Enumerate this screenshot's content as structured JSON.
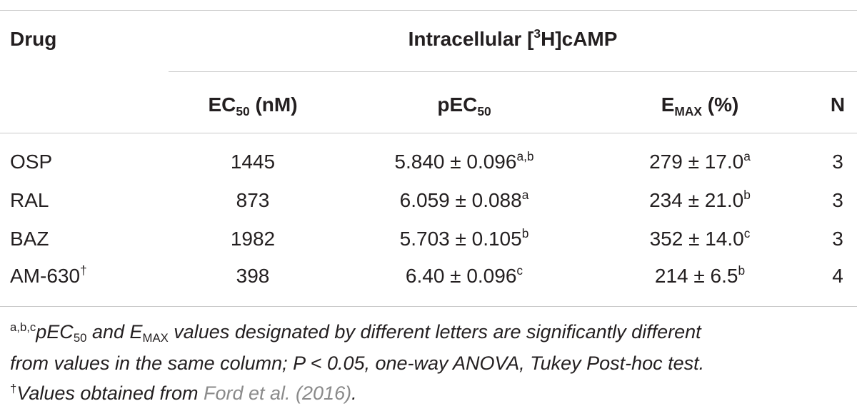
{
  "header": {
    "drug": "Drug",
    "group": {
      "pre": "Intracellular [",
      "sup": "3",
      "post": "H]cAMP"
    },
    "ec50": {
      "pre": "EC",
      "sub": "50",
      "post": " (nM)"
    },
    "pec50": {
      "pre": "pEC",
      "sub": "50",
      "post": ""
    },
    "emax": {
      "pre": "E",
      "sub": "MAX",
      "post": " (%)"
    },
    "n": "N"
  },
  "rows": [
    {
      "drug": "OSP",
      "drug_sup": "",
      "ec50": "1445",
      "pec50": "5.840 ± 0.096",
      "pec50_sup": "a,b",
      "emax": "279 ± 17.0",
      "emax_sup": "a",
      "n": "3"
    },
    {
      "drug": "RAL",
      "drug_sup": "",
      "ec50": "873",
      "pec50": "6.059 ± 0.088",
      "pec50_sup": "a",
      "emax": "234 ± 21.0",
      "emax_sup": "b",
      "n": "3"
    },
    {
      "drug": "BAZ",
      "drug_sup": "",
      "ec50": "1982",
      "pec50": "5.703 ± 0.105",
      "pec50_sup": "b",
      "emax": "352 ± 14.0",
      "emax_sup": "c",
      "n": "3"
    },
    {
      "drug": "AM-630",
      "drug_sup": "†",
      "ec50": "398",
      "pec50": "6.40 ± 0.096",
      "pec50_sup": "c",
      "emax": "214 ± 6.5",
      "emax_sup": "b",
      "n": "4"
    }
  ],
  "footnotes": {
    "line1": {
      "sup": "a,b,c",
      "t1": "pEC",
      "sub1": "50",
      "t2": " and E",
      "sub2": "MAX",
      "t3": " values designated by different letters are significantly different"
    },
    "line2": "from values in the same column; P < 0.05, one-way ANOVA, Tukey Post-hoc test.",
    "line3": {
      "sup": "†",
      "text": "Values obtained from ",
      "citation": "Ford et al. (2016)",
      "end": "."
    }
  }
}
